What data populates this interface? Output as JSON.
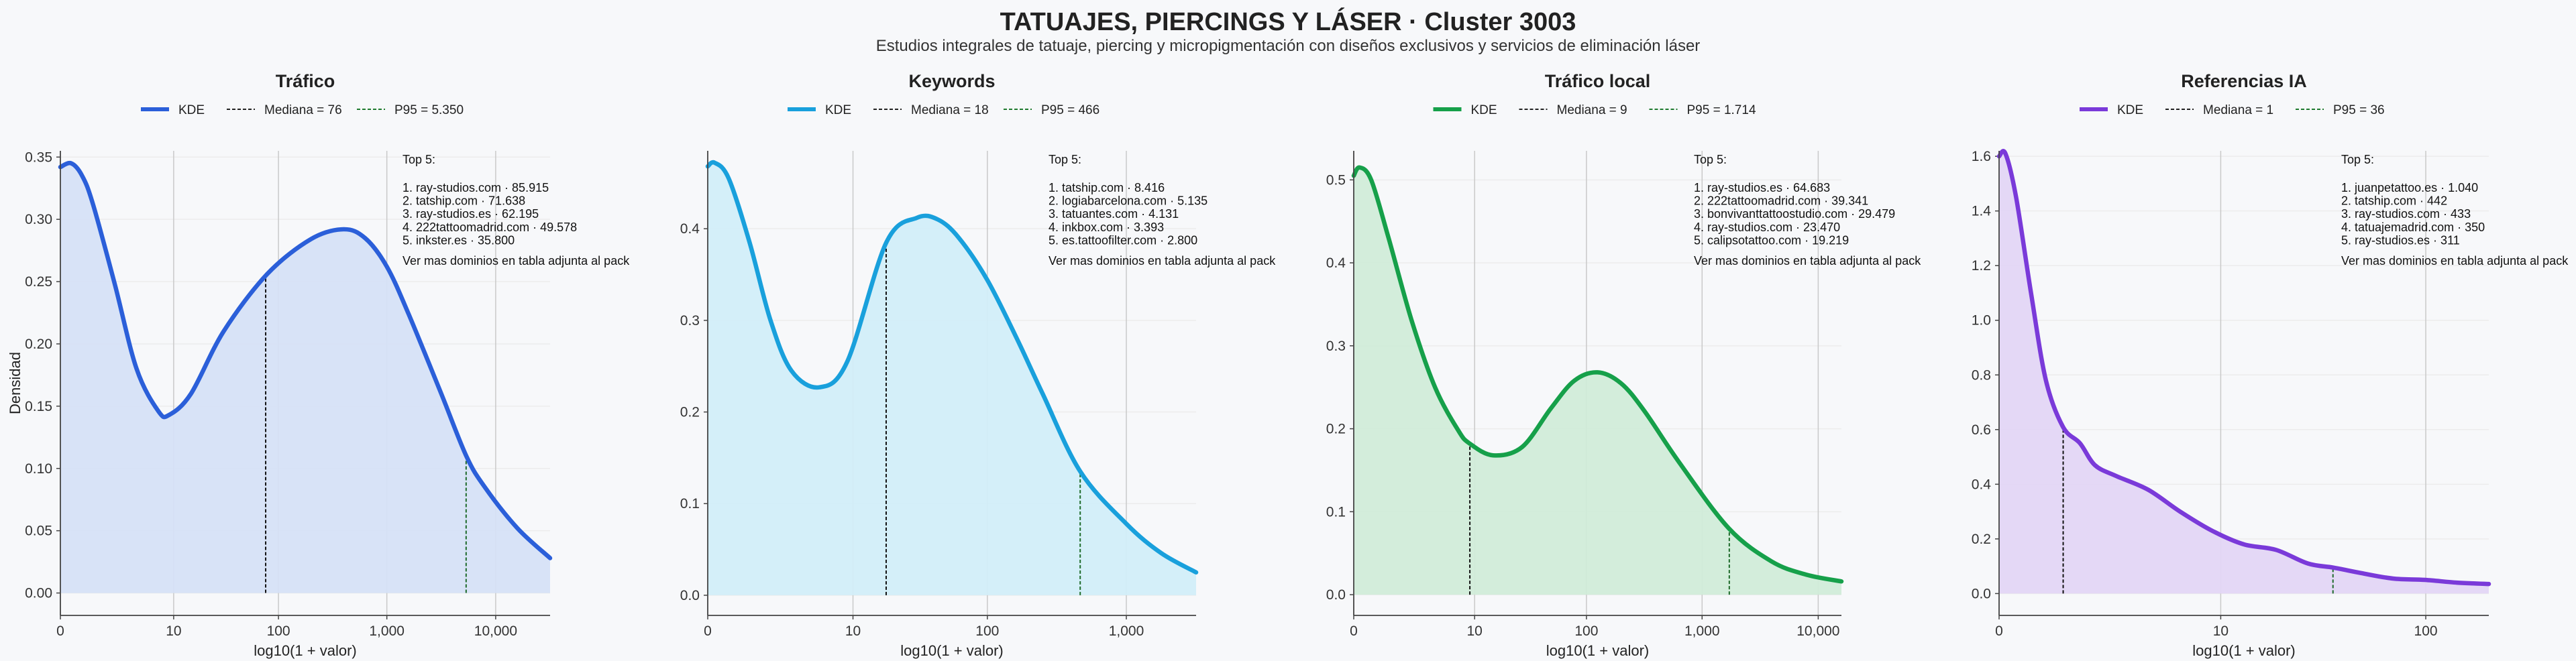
{
  "header": {
    "title": "TATUAJES, PIERCINGS Y LÁSER · Cluster 3003",
    "subtitle": "Estudios integrales de tatuaje, piercing y micropigmentación con diseños exclusivos y servicios de eliminación láser"
  },
  "common": {
    "xlabel": "log10(1 + valor)",
    "ylabel": "Densidad",
    "kde_label": "KDE",
    "top_title": "Top 5:",
    "top_footer": "Ver mas dominios en tabla adjunta al pack"
  },
  "chart_data": [
    {
      "type": "area",
      "title": "Tráfico",
      "color": "#2b5fd9",
      "fill": "#d6e1f7",
      "legend": [
        "KDE",
        "Mediana = 76",
        "P95 = 5.350"
      ],
      "median": 76,
      "p95": 5350,
      "xlim": [
        0,
        4.5
      ],
      "ylim": [
        -0.018,
        0.355
      ],
      "yticks": [
        0,
        0.05,
        0.1,
        0.15,
        0.2,
        0.25,
        0.3,
        0.35
      ],
      "ytick_labels": [
        "0.00",
        "0.05",
        "0.10",
        "0.15",
        "0.20",
        "0.25",
        "0.30",
        "0.35"
      ],
      "xticks": [
        0,
        1.041,
        2.004,
        3.0,
        4.0
      ],
      "xtick_labels": [
        "0",
        "10",
        "100",
        "1,000",
        "10,000"
      ],
      "x": [
        0,
        0.1,
        0.2,
        0.3,
        0.5,
        0.7,
        0.9,
        1.0,
        1.2,
        1.5,
        1.9,
        2.3,
        2.6,
        2.8,
        3.0,
        3.2,
        3.5,
        3.73,
        3.9,
        4.2,
        4.5
      ],
      "y": [
        0.342,
        0.345,
        0.335,
        0.312,
        0.248,
        0.18,
        0.146,
        0.143,
        0.16,
        0.21,
        0.256,
        0.284,
        0.292,
        0.285,
        0.262,
        0.224,
        0.16,
        0.11,
        0.085,
        0.052,
        0.028
      ],
      "top5": [
        "1. ray-studios.com · 85.915",
        "2. tatship.com · 71.638",
        "3. ray-studios.es · 62.195",
        "4. 222tattoomadrid.com · 49.578",
        "5. inkster.es · 35.800"
      ]
    },
    {
      "type": "area",
      "title": "Keywords",
      "color": "#19a0dc",
      "fill": "#d2eef9",
      "legend": [
        "KDE",
        "Mediana = 18",
        "P95 = 466"
      ],
      "median": 18,
      "p95": 466,
      "xlim": [
        0,
        3.5
      ],
      "ylim": [
        -0.022,
        0.485
      ],
      "yticks": [
        0,
        0.1,
        0.2,
        0.3,
        0.4
      ],
      "ytick_labels": [
        "0.0",
        "0.1",
        "0.2",
        "0.3",
        "0.4"
      ],
      "xticks": [
        0,
        1.041,
        2.004,
        3.0
      ],
      "xtick_labels": [
        "0",
        "10",
        "100",
        "1,000"
      ],
      "x": [
        0,
        0.05,
        0.15,
        0.3,
        0.45,
        0.6,
        0.8,
        1.0,
        1.28,
        1.5,
        1.65,
        1.8,
        2.0,
        2.2,
        2.4,
        2.67,
        3.0,
        3.25,
        3.5
      ],
      "y": [
        0.468,
        0.472,
        0.455,
        0.385,
        0.3,
        0.245,
        0.227,
        0.255,
        0.385,
        0.412,
        0.41,
        0.39,
        0.345,
        0.285,
        0.22,
        0.135,
        0.078,
        0.046,
        0.025
      ],
      "top5": [
        "1. tatship.com · 8.416",
        "2. logiabarcelona.com · 5.135",
        "3. tatuantes.com · 4.131",
        "4. inkbox.com · 3.393",
        "5. es.tattoofilter.com · 2.800"
      ]
    },
    {
      "type": "area",
      "title": "Tráfico local",
      "color": "#16a04a",
      "fill": "#d1ecd9",
      "legend": [
        "KDE",
        "Mediana = 9",
        "P95 = 1.714"
      ],
      "median": 9,
      "p95": 1714,
      "xlim": [
        0,
        4.2
      ],
      "ylim": [
        -0.025,
        0.535
      ],
      "yticks": [
        0,
        0.1,
        0.2,
        0.3,
        0.4,
        0.5
      ],
      "ytick_labels": [
        "0.0",
        "0.1",
        "0.2",
        "0.3",
        "0.4",
        "0.5"
      ],
      "xticks": [
        0,
        1.041,
        2.004,
        3.0,
        4.0
      ],
      "xtick_labels": [
        "0",
        "10",
        "100",
        "1,000",
        "10,000"
      ],
      "x": [
        0,
        0.05,
        0.15,
        0.3,
        0.5,
        0.7,
        0.9,
        1.0,
        1.2,
        1.45,
        1.7,
        1.9,
        2.1,
        2.3,
        2.5,
        2.8,
        3.23,
        3.6,
        3.9,
        4.2
      ],
      "y": [
        0.505,
        0.515,
        0.5,
        0.43,
        0.33,
        0.25,
        0.198,
        0.182,
        0.168,
        0.178,
        0.225,
        0.258,
        0.268,
        0.255,
        0.222,
        0.16,
        0.08,
        0.04,
        0.024,
        0.016
      ],
      "top5": [
        "1. ray-studios.es · 64.683",
        "2. 222tattoomadrid.com · 39.341",
        "3. bonvivanttattoostudio.com · 29.479",
        "4. ray-studios.com · 23.470",
        "5. calipsotattoo.com · 19.219"
      ]
    },
    {
      "type": "area",
      "title": "Referencias IA",
      "color": "#7a3ad9",
      "fill": "#e3d6f6",
      "legend": [
        "KDE",
        "Mediana = 1",
        "P95 = 36"
      ],
      "median": 1,
      "p95": 36,
      "xlim": [
        0,
        2.3
      ],
      "ylim": [
        -0.08,
        1.62
      ],
      "yticks": [
        0,
        0.2,
        0.4,
        0.6,
        0.8,
        1.0,
        1.2,
        1.4,
        1.6
      ],
      "ytick_labels": [
        "0.0",
        "0.2",
        "0.4",
        "0.6",
        "0.8",
        "1.0",
        "1.2",
        "1.4",
        "1.6"
      ],
      "xticks": [
        0,
        1.041,
        2.004
      ],
      "xtick_labels": [
        "0",
        "10",
        "100"
      ],
      "x": [
        0,
        0.03,
        0.08,
        0.15,
        0.22,
        0.3,
        0.38,
        0.45,
        0.55,
        0.7,
        0.85,
        1.0,
        1.15,
        1.3,
        1.45,
        1.57,
        1.7,
        1.85,
        2.0,
        2.15,
        2.3
      ],
      "y": [
        1.6,
        1.61,
        1.45,
        1.1,
        0.78,
        0.61,
        0.55,
        0.47,
        0.43,
        0.38,
        0.3,
        0.23,
        0.18,
        0.16,
        0.11,
        0.095,
        0.075,
        0.055,
        0.05,
        0.04,
        0.035
      ],
      "top5": [
        "1. juanpetattoo.es · 1.040",
        "2. tatship.com · 442",
        "3. ray-studios.com · 433",
        "4. tatuajemadrid.com · 350",
        "5. ray-studios.es · 311"
      ]
    }
  ]
}
